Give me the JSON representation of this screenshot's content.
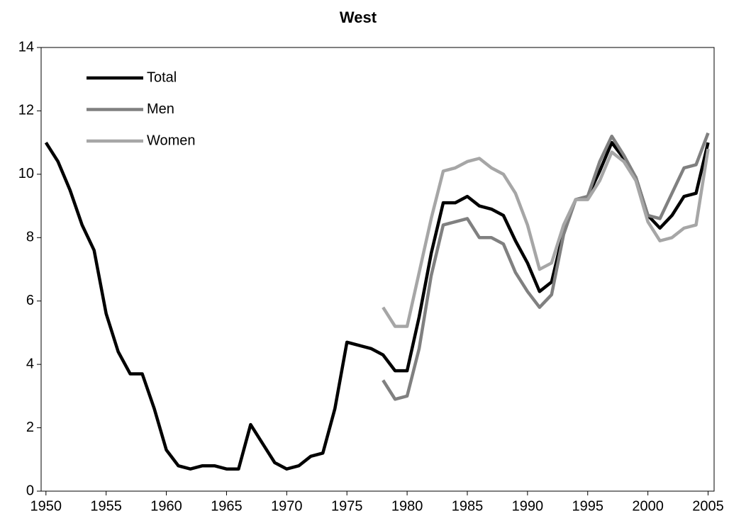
{
  "chart_data": {
    "type": "line",
    "title": "West",
    "x": [
      1950,
      1951,
      1952,
      1953,
      1954,
      1955,
      1956,
      1957,
      1958,
      1959,
      1960,
      1961,
      1962,
      1963,
      1964,
      1965,
      1966,
      1967,
      1968,
      1969,
      1970,
      1971,
      1972,
      1973,
      1974,
      1975,
      1976,
      1977,
      1978,
      1979,
      1980,
      1981,
      1982,
      1983,
      1984,
      1985,
      1986,
      1987,
      1988,
      1989,
      1990,
      1991,
      1992,
      1993,
      1994,
      1995,
      1996,
      1997,
      1998,
      1999,
      2000,
      2001,
      2002,
      2003,
      2004,
      2005
    ],
    "series": [
      {
        "name": "Total",
        "color": "#000000",
        "values": [
          11.0,
          10.4,
          9.5,
          8.4,
          7.6,
          5.6,
          4.4,
          3.7,
          3.7,
          2.6,
          1.3,
          0.8,
          0.7,
          0.8,
          0.8,
          0.7,
          0.7,
          2.1,
          1.5,
          0.9,
          0.7,
          0.8,
          1.1,
          1.2,
          2.6,
          4.7,
          4.6,
          4.5,
          4.3,
          3.8,
          3.8,
          5.5,
          7.5,
          9.1,
          9.1,
          9.3,
          9.0,
          8.9,
          8.7,
          7.9,
          7.2,
          6.3,
          6.6,
          8.2,
          9.2,
          9.3,
          10.1,
          11.0,
          10.5,
          9.9,
          8.7,
          8.3,
          8.7,
          9.3,
          9.4,
          11.0
        ]
      },
      {
        "name": "Men",
        "color": "#808080",
        "values": [
          null,
          null,
          null,
          null,
          null,
          null,
          null,
          null,
          null,
          null,
          null,
          null,
          null,
          null,
          null,
          null,
          null,
          null,
          null,
          null,
          null,
          null,
          null,
          null,
          null,
          null,
          null,
          null,
          3.5,
          2.9,
          3.0,
          4.5,
          6.8,
          8.4,
          8.5,
          8.6,
          8.0,
          8.0,
          7.8,
          6.9,
          6.3,
          5.8,
          6.2,
          8.1,
          9.2,
          9.3,
          10.4,
          11.2,
          10.6,
          9.9,
          8.7,
          8.6,
          9.4,
          10.2,
          10.3,
          11.3
        ]
      },
      {
        "name": "Women",
        "color": "#a6a6a6",
        "values": [
          null,
          null,
          null,
          null,
          null,
          null,
          null,
          null,
          null,
          null,
          null,
          null,
          null,
          null,
          null,
          null,
          null,
          null,
          null,
          null,
          null,
          null,
          null,
          null,
          null,
          null,
          null,
          null,
          5.8,
          5.2,
          5.2,
          6.9,
          8.6,
          10.1,
          10.2,
          10.4,
          10.5,
          10.2,
          10.0,
          9.4,
          8.4,
          7.0,
          7.2,
          8.4,
          9.2,
          9.2,
          9.8,
          10.7,
          10.4,
          9.8,
          8.5,
          7.9,
          8.0,
          8.3,
          8.4,
          10.8
        ]
      }
    ],
    "xlim": [
      1949.6,
      2005.5
    ],
    "xticks": [
      1950,
      1955,
      1960,
      1965,
      1970,
      1975,
      1980,
      1985,
      1990,
      1995,
      2000,
      2005
    ],
    "ylim": [
      0,
      14
    ],
    "yticks": [
      0,
      2,
      4,
      6,
      8,
      10,
      12,
      14
    ],
    "grid": false,
    "legend": "upper left"
  }
}
